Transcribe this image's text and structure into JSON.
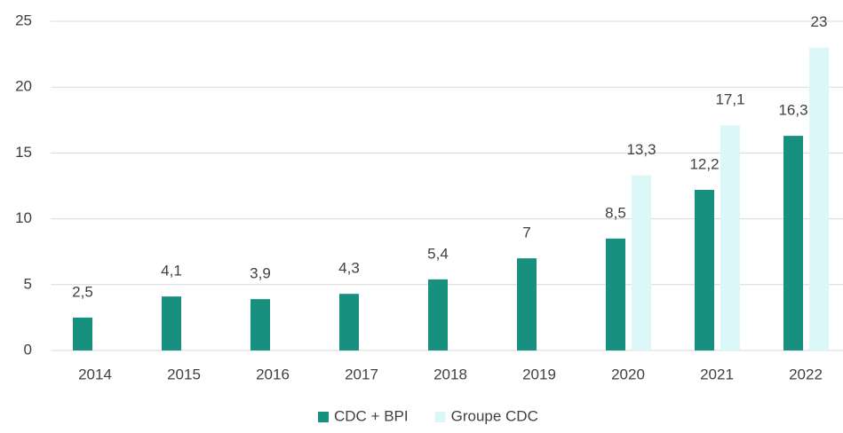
{
  "chart_data": {
    "type": "bar",
    "categories": [
      "2014",
      "2015",
      "2016",
      "2017",
      "2018",
      "2019",
      "2020",
      "2021",
      "2022"
    ],
    "series": [
      {
        "name": "CDC + BPI",
        "color": "#179080",
        "values": [
          2.5,
          4.1,
          3.9,
          4.3,
          5.4,
          7,
          8.5,
          12.2,
          16.3
        ],
        "value_labels": [
          "2,5",
          "4,1",
          "3,9",
          "4,3",
          "5,4",
          "7",
          "8,5",
          "12,2",
          "16,3"
        ]
      },
      {
        "name": "Groupe CDC",
        "color": "#dbf7f7",
        "values": [
          null,
          null,
          null,
          null,
          null,
          null,
          13.3,
          17.1,
          23
        ],
        "value_labels": [
          null,
          null,
          null,
          null,
          null,
          null,
          "13,3",
          "17,1",
          "23"
        ]
      }
    ],
    "ylim": [
      0,
      25
    ],
    "yticks": [
      0,
      5,
      10,
      15,
      20,
      25
    ],
    "grid": true,
    "legend": "bottom"
  }
}
